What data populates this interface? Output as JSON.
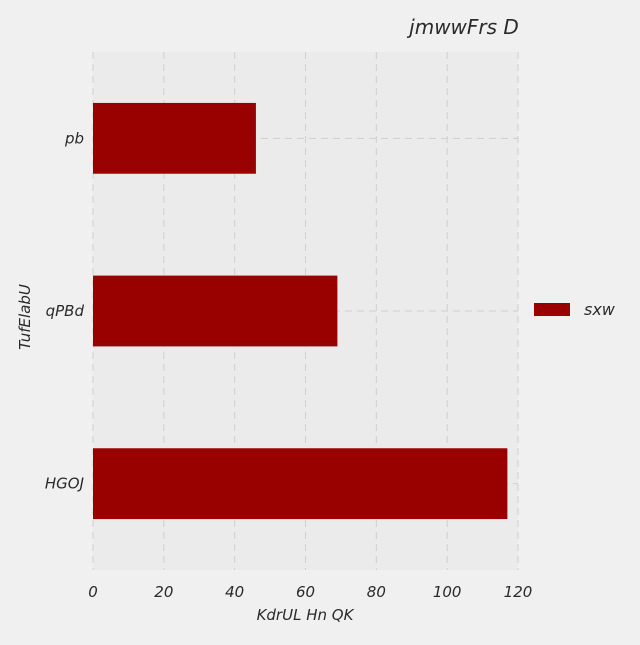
{
  "chart_data": {
    "type": "bar",
    "orientation": "horizontal",
    "title": "jmwwFrs D",
    "xlabel": "KdrUL Hn QK",
    "ylabel": "TufElabU",
    "categories": [
      "pb",
      "qPBd",
      "HGOJ"
    ],
    "series": [
      {
        "name": "sxw",
        "values": [
          46,
          69,
          117
        ],
        "color": "#990000"
      }
    ],
    "xlim": [
      0,
      120
    ],
    "xticks": [
      0,
      20,
      40,
      60,
      80,
      100,
      120
    ],
    "xtick_labels": [
      "0",
      "20",
      "40",
      "60",
      "80",
      "100",
      "120"
    ],
    "grid": true,
    "legend": {
      "position": "right"
    },
    "colors": {
      "background": "#f0f0f0",
      "plot_background": "#ebebeb"
    }
  }
}
